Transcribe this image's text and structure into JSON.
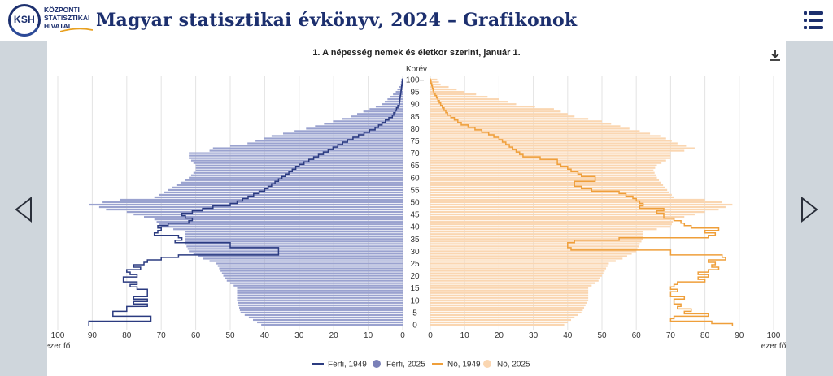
{
  "header": {
    "logo_abbr": "KSH",
    "logo_lines": [
      "KÖZPONTI",
      "STATISZTIKAI",
      "HIVATAL"
    ],
    "title": "Magyar statisztikai évkönyv, 2024 – Grafikonok"
  },
  "colors": {
    "brand": "#1c2f6e",
    "male_2025_bar": "#9aa2cf",
    "male_1949_line": "#2b3b80",
    "female_2025_bar": "#fad6b1",
    "female_1949_line": "#ef9f3a",
    "stage_bg": "#cfd6dc"
  },
  "icons": {
    "menu": "hamburger-icon",
    "download": "download-icon",
    "prev": "triangle-left-icon",
    "next": "triangle-right-icon"
  },
  "chart_data": {
    "type": "bar",
    "orientation": "horizontal-population-pyramid",
    "title": "1. A népesség nemek és életkor szerint, január 1.",
    "y_axis_label": "Korév",
    "x_unit_label": "ezer fő",
    "age_range": [
      0,
      100
    ],
    "age_ticks": [
      0,
      5,
      10,
      15,
      20,
      25,
      30,
      35,
      40,
      45,
      50,
      55,
      60,
      65,
      70,
      75,
      80,
      85,
      90,
      95,
      100
    ],
    "age_ticks_labels": [
      "0",
      "5",
      "10",
      "15",
      "20",
      "25",
      "30",
      "35",
      "40",
      "45",
      "50",
      "55",
      "60",
      "65",
      "70",
      "75",
      "80",
      "85",
      "90",
      "95",
      "100–"
    ],
    "left_axis_ticks": [
      0,
      10,
      20,
      30,
      40,
      50,
      60,
      70,
      80,
      90,
      100
    ],
    "right_axis_ticks": [
      0,
      10,
      20,
      30,
      40,
      50,
      60,
      70,
      80,
      90,
      100
    ],
    "xlim": [
      0,
      100
    ],
    "grid": true,
    "legend_position": "bottom",
    "series": [
      {
        "name": "Férfi, 1949",
        "kind": "line",
        "side": "left",
        "anchors": [
          [
            0,
            91
          ],
          [
            1,
            91
          ],
          [
            2,
            73
          ],
          [
            3,
            73
          ],
          [
            4,
            84
          ],
          [
            5,
            84
          ],
          [
            6,
            80
          ],
          [
            7,
            80
          ],
          [
            8,
            74
          ],
          [
            9,
            78
          ],
          [
            10,
            74
          ],
          [
            11,
            78
          ],
          [
            12,
            74
          ],
          [
            13,
            74
          ],
          [
            14,
            74
          ],
          [
            15,
            77
          ],
          [
            16,
            79
          ],
          [
            17,
            77
          ],
          [
            18,
            81
          ],
          [
            19,
            81
          ],
          [
            20,
            77
          ],
          [
            21,
            79
          ],
          [
            22,
            80
          ],
          [
            23,
            76
          ],
          [
            24,
            78
          ],
          [
            25,
            75
          ],
          [
            26,
            74
          ],
          [
            27,
            70
          ],
          [
            28,
            65
          ],
          [
            29,
            36
          ],
          [
            30,
            36
          ],
          [
            31,
            36
          ],
          [
            32,
            50
          ],
          [
            33,
            50
          ],
          [
            34,
            66
          ],
          [
            35,
            64
          ],
          [
            36,
            65
          ],
          [
            37,
            72
          ],
          [
            38,
            71
          ],
          [
            39,
            70
          ],
          [
            40,
            71
          ],
          [
            41,
            68
          ],
          [
            42,
            62
          ],
          [
            43,
            61
          ],
          [
            44,
            63
          ],
          [
            45,
            64
          ],
          [
            46,
            61
          ],
          [
            47,
            58
          ],
          [
            48,
            55
          ],
          [
            49,
            50
          ],
          [
            50,
            48
          ],
          [
            55,
            40
          ],
          [
            60,
            35
          ],
          [
            65,
            30
          ],
          [
            70,
            23
          ],
          [
            75,
            16
          ],
          [
            80,
            8
          ],
          [
            85,
            3
          ],
          [
            90,
            1
          ],
          [
            95,
            0.5
          ],
          [
            100,
            0
          ]
        ]
      },
      {
        "name": "Férfi, 2025",
        "kind": "bar",
        "side": "left",
        "anchors": [
          [
            0,
            41
          ],
          [
            5,
            47
          ],
          [
            10,
            48
          ],
          [
            15,
            48
          ],
          [
            18,
            51
          ],
          [
            20,
            52
          ],
          [
            25,
            54
          ],
          [
            27,
            58
          ],
          [
            30,
            62
          ],
          [
            33,
            63
          ],
          [
            35,
            63
          ],
          [
            38,
            63
          ],
          [
            40,
            70
          ],
          [
            43,
            72
          ],
          [
            45,
            78
          ],
          [
            46,
            80
          ],
          [
            47,
            86
          ],
          [
            48,
            88
          ],
          [
            49,
            91
          ],
          [
            50,
            87
          ],
          [
            51,
            82
          ],
          [
            52,
            72
          ],
          [
            55,
            68
          ],
          [
            60,
            62
          ],
          [
            63,
            60
          ],
          [
            65,
            60
          ],
          [
            68,
            62
          ],
          [
            70,
            62
          ],
          [
            71,
            56
          ],
          [
            72,
            55
          ],
          [
            74,
            45
          ],
          [
            77,
            38
          ],
          [
            80,
            28
          ],
          [
            85,
            15
          ],
          [
            90,
            6
          ],
          [
            95,
            2
          ],
          [
            98,
            0.6
          ],
          [
            100,
            0.4
          ]
        ]
      },
      {
        "name": "Nő, 1949",
        "kind": "line",
        "side": "right",
        "anchors": [
          [
            0,
            88
          ],
          [
            1,
            82
          ],
          [
            2,
            70
          ],
          [
            3,
            71
          ],
          [
            4,
            81
          ],
          [
            5,
            74
          ],
          [
            6,
            76
          ],
          [
            7,
            72
          ],
          [
            8,
            73
          ],
          [
            9,
            71
          ],
          [
            10,
            71
          ],
          [
            11,
            74
          ],
          [
            12,
            70
          ],
          [
            13,
            70
          ],
          [
            14,
            72
          ],
          [
            15,
            70
          ],
          [
            16,
            71
          ],
          [
            17,
            72
          ],
          [
            18,
            80
          ],
          [
            19,
            78
          ],
          [
            20,
            81
          ],
          [
            21,
            78
          ],
          [
            22,
            81
          ],
          [
            23,
            84
          ],
          [
            24,
            82
          ],
          [
            25,
            83
          ],
          [
            26,
            81
          ],
          [
            27,
            86
          ],
          [
            28,
            85
          ],
          [
            29,
            70
          ],
          [
            30,
            70
          ],
          [
            31,
            41
          ],
          [
            32,
            40
          ],
          [
            33,
            40
          ],
          [
            34,
            42
          ],
          [
            35,
            55
          ],
          [
            36,
            81
          ],
          [
            37,
            83
          ],
          [
            38,
            80
          ],
          [
            39,
            84
          ],
          [
            40,
            76
          ],
          [
            41,
            74
          ],
          [
            42,
            73
          ],
          [
            43,
            71
          ],
          [
            44,
            68
          ],
          [
            45,
            68
          ],
          [
            46,
            66
          ],
          [
            47,
            68
          ],
          [
            48,
            61
          ],
          [
            49,
            62
          ],
          [
            50,
            61
          ],
          [
            51,
            60
          ],
          [
            52,
            59
          ],
          [
            53,
            57
          ],
          [
            54,
            55
          ],
          [
            55,
            47
          ],
          [
            56,
            44
          ],
          [
            57,
            42
          ],
          [
            58,
            42
          ],
          [
            59,
            48
          ],
          [
            60,
            48
          ],
          [
            61,
            44
          ],
          [
            62,
            43
          ],
          [
            63,
            41
          ],
          [
            64,
            40
          ],
          [
            65,
            38
          ],
          [
            66,
            37
          ],
          [
            67,
            37
          ],
          [
            68,
            32
          ],
          [
            69,
            27
          ],
          [
            70,
            26
          ],
          [
            72,
            24
          ],
          [
            74,
            22
          ],
          [
            76,
            20
          ],
          [
            78,
            17
          ],
          [
            80,
            13
          ],
          [
            82,
            9
          ],
          [
            84,
            7
          ],
          [
            86,
            5
          ],
          [
            88,
            4
          ],
          [
            90,
            3
          ],
          [
            95,
            1
          ],
          [
            100,
            0
          ]
        ]
      },
      {
        "name": "Nő, 2025",
        "kind": "bar",
        "side": "right",
        "anchors": [
          [
            0,
            39
          ],
          [
            5,
            44
          ],
          [
            10,
            46
          ],
          [
            15,
            46
          ],
          [
            18,
            49
          ],
          [
            20,
            50
          ],
          [
            25,
            52
          ],
          [
            27,
            56
          ],
          [
            30,
            60
          ],
          [
            33,
            61
          ],
          [
            35,
            62
          ],
          [
            38,
            62
          ],
          [
            40,
            70
          ],
          [
            43,
            71
          ],
          [
            45,
            77
          ],
          [
            46,
            80
          ],
          [
            47,
            84
          ],
          [
            48,
            86
          ],
          [
            49,
            88
          ],
          [
            50,
            85
          ],
          [
            51,
            80
          ],
          [
            52,
            71
          ],
          [
            55,
            69
          ],
          [
            60,
            66
          ],
          [
            63,
            65
          ],
          [
            65,
            66
          ],
          [
            68,
            70
          ],
          [
            70,
            70
          ],
          [
            71,
            74
          ],
          [
            72,
            77
          ],
          [
            74,
            72
          ],
          [
            77,
            67
          ],
          [
            80,
            58
          ],
          [
            83,
            50
          ],
          [
            85,
            42
          ],
          [
            88,
            36
          ],
          [
            90,
            25
          ],
          [
            92,
            20
          ],
          [
            95,
            10
          ],
          [
            98,
            3
          ],
          [
            100,
            2
          ]
        ]
      }
    ]
  }
}
